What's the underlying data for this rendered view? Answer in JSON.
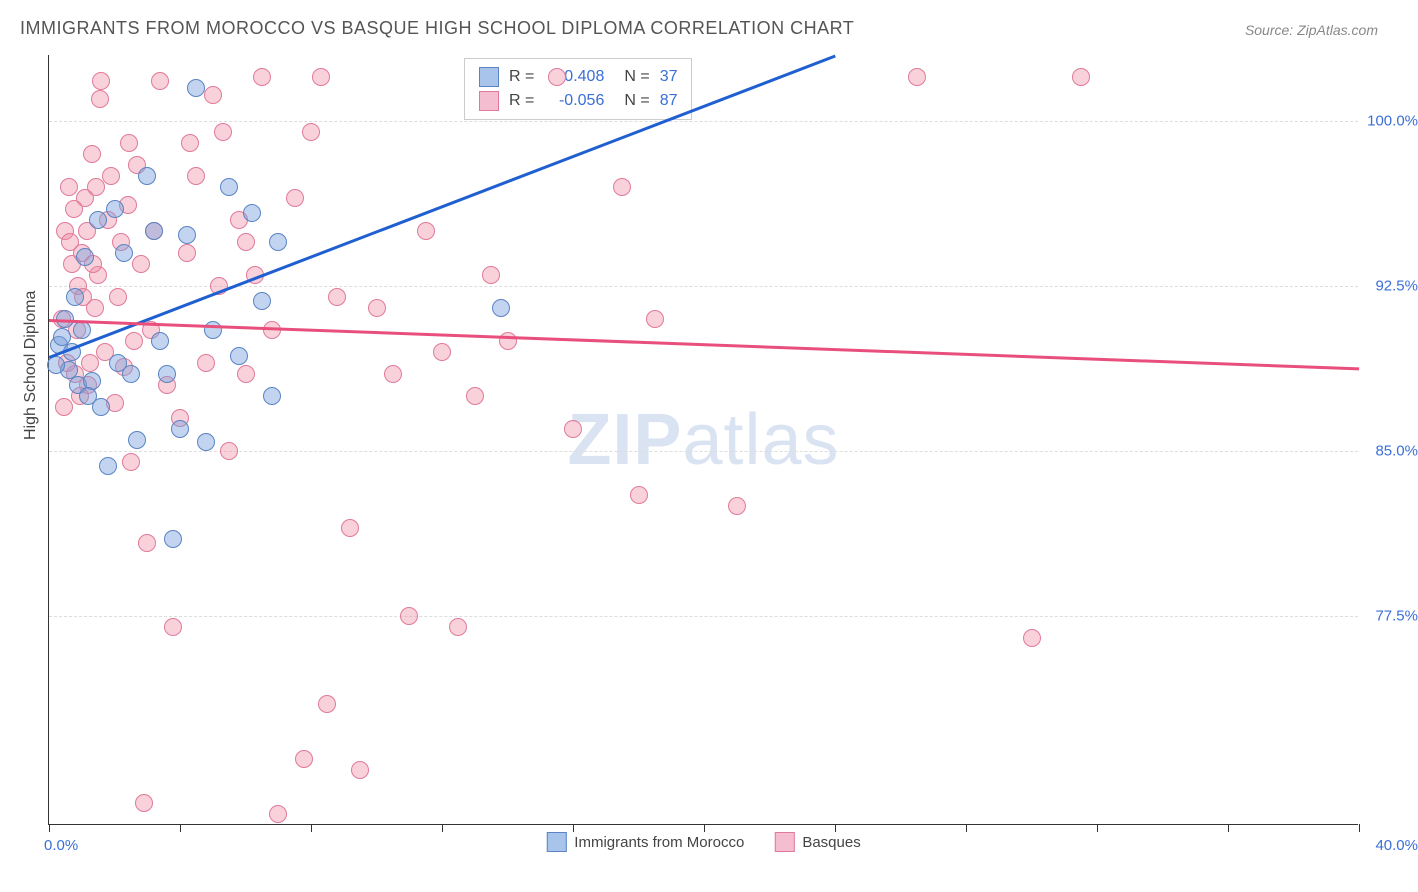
{
  "title": "IMMIGRANTS FROM MOROCCO VS BASQUE HIGH SCHOOL DIPLOMA CORRELATION CHART",
  "source": "Source: ZipAtlas.com",
  "watermark_zip": "ZIP",
  "watermark_atlas": "atlas",
  "y_axis_title": "High School Diploma",
  "chart": {
    "type": "scatter",
    "xlim": [
      0,
      40
    ],
    "ylim": [
      68,
      103
    ],
    "x_label_min": "0.0%",
    "x_label_max": "40.0%",
    "x_tick_positions": [
      0,
      4,
      8,
      12,
      16,
      20,
      24,
      28,
      32,
      36,
      40
    ],
    "y_gridlines": [
      {
        "value": 77.5,
        "label": "77.5%"
      },
      {
        "value": 85.0,
        "label": "85.0%"
      },
      {
        "value": 92.5,
        "label": "92.5%"
      },
      {
        "value": 100.0,
        "label": "100.0%"
      }
    ],
    "background_color": "#ffffff",
    "grid_color": "#dddddd",
    "axis_color": "#333333",
    "label_color": "#3a6fd8",
    "series": [
      {
        "name": "Immigrants from Morocco",
        "color_fill": "rgba(120,160,220,0.45)",
        "color_stroke": "#5a84c4",
        "swatch_fill": "#a9c4ea",
        "swatch_stroke": "#5a84c4",
        "r_value": "0.408",
        "n_value": "37",
        "trend": {
          "x1": 0,
          "y1": 89.3,
          "x2": 24,
          "y2": 103,
          "color": "#1f5fd0"
        },
        "points": [
          [
            0.3,
            89.8
          ],
          [
            0.4,
            90.2
          ],
          [
            0.5,
            91.0
          ],
          [
            0.6,
            88.7
          ],
          [
            0.7,
            89.5
          ],
          [
            0.8,
            92.0
          ],
          [
            0.9,
            88.0
          ],
          [
            1.0,
            90.5
          ],
          [
            1.1,
            93.8
          ],
          [
            1.3,
            88.2
          ],
          [
            1.5,
            95.5
          ],
          [
            1.6,
            87.0
          ],
          [
            1.8,
            84.3
          ],
          [
            2.0,
            96.0
          ],
          [
            2.1,
            89.0
          ],
          [
            2.3,
            94.0
          ],
          [
            2.5,
            88.5
          ],
          [
            2.7,
            85.5
          ],
          [
            3.0,
            97.5
          ],
          [
            3.2,
            95.0
          ],
          [
            3.4,
            90.0
          ],
          [
            3.6,
            88.5
          ],
          [
            3.8,
            81.0
          ],
          [
            4.0,
            86.0
          ],
          [
            4.2,
            94.8
          ],
          [
            4.5,
            101.5
          ],
          [
            4.8,
            85.4
          ],
          [
            5.0,
            90.5
          ],
          [
            5.5,
            97.0
          ],
          [
            5.8,
            89.3
          ],
          [
            6.2,
            95.8
          ],
          [
            6.5,
            91.8
          ],
          [
            6.8,
            87.5
          ],
          [
            7.0,
            94.5
          ],
          [
            13.8,
            91.5
          ],
          [
            0.2,
            88.9
          ],
          [
            1.2,
            87.5
          ]
        ]
      },
      {
        "name": "Basques",
        "color_fill": "rgba(240,140,165,0.4)",
        "color_stroke": "#e07a9a",
        "swatch_fill": "#f5bdd0",
        "swatch_stroke": "#e07a9a",
        "r_value": "-0.056",
        "n_value": "87",
        "trend": {
          "x1": 0,
          "y1": 91.0,
          "x2": 40,
          "y2": 88.8,
          "color": "#e84f7d"
        },
        "points": [
          [
            0.4,
            91.0
          ],
          [
            0.5,
            95.0
          ],
          [
            0.6,
            97.0
          ],
          [
            0.7,
            93.5
          ],
          [
            0.8,
            88.5
          ],
          [
            0.9,
            92.5
          ],
          [
            1.0,
            94.0
          ],
          [
            1.1,
            96.5
          ],
          [
            1.2,
            88.0
          ],
          [
            1.3,
            98.5
          ],
          [
            1.4,
            91.5
          ],
          [
            1.5,
            93.0
          ],
          [
            1.6,
            101.8
          ],
          [
            1.7,
            89.5
          ],
          [
            1.8,
            95.5
          ],
          [
            1.9,
            97.5
          ],
          [
            2.0,
            87.2
          ],
          [
            2.1,
            92.0
          ],
          [
            2.2,
            94.5
          ],
          [
            2.3,
            88.8
          ],
          [
            2.4,
            96.2
          ],
          [
            2.5,
            84.5
          ],
          [
            2.6,
            90.0
          ],
          [
            2.7,
            98.0
          ],
          [
            2.8,
            93.5
          ],
          [
            3.0,
            80.8
          ],
          [
            3.2,
            95.0
          ],
          [
            3.4,
            101.8
          ],
          [
            3.6,
            88.0
          ],
          [
            3.8,
            77.0
          ],
          [
            4.0,
            86.5
          ],
          [
            4.2,
            94.0
          ],
          [
            4.5,
            97.5
          ],
          [
            4.8,
            89.0
          ],
          [
            5.0,
            101.2
          ],
          [
            5.2,
            92.5
          ],
          [
            5.5,
            85.0
          ],
          [
            5.8,
            95.5
          ],
          [
            6.0,
            88.5
          ],
          [
            6.3,
            93.0
          ],
          [
            6.5,
            102.0
          ],
          [
            6.8,
            90.5
          ],
          [
            7.0,
            68.5
          ],
          [
            7.5,
            96.5
          ],
          [
            7.8,
            71.0
          ],
          [
            8.0,
            99.5
          ],
          [
            8.3,
            102.0
          ],
          [
            8.5,
            73.5
          ],
          [
            8.8,
            92.0
          ],
          [
            9.2,
            81.5
          ],
          [
            9.5,
            70.5
          ],
          [
            10.0,
            91.5
          ],
          [
            10.5,
            88.5
          ],
          [
            11.0,
            77.5
          ],
          [
            11.5,
            95.0
          ],
          [
            12.0,
            89.5
          ],
          [
            12.5,
            77.0
          ],
          [
            13.0,
            87.5
          ],
          [
            13.5,
            93.0
          ],
          [
            14.0,
            90.0
          ],
          [
            15.5,
            102.0
          ],
          [
            16.0,
            86.0
          ],
          [
            17.5,
            97.0
          ],
          [
            18.5,
            91.0
          ],
          [
            21.0,
            82.5
          ],
          [
            26.5,
            102.0
          ],
          [
            30.0,
            76.5
          ],
          [
            31.5,
            102.0
          ],
          [
            18.0,
            83.0
          ],
          [
            2.9,
            69.0
          ],
          [
            1.55,
            101.0
          ],
          [
            0.45,
            87.0
          ],
          [
            0.55,
            89.0
          ],
          [
            0.65,
            94.5
          ],
          [
            0.75,
            96.0
          ],
          [
            0.85,
            90.5
          ],
          [
            0.95,
            87.5
          ],
          [
            1.05,
            92.0
          ],
          [
            1.15,
            95.0
          ],
          [
            1.25,
            89.0
          ],
          [
            1.35,
            93.5
          ],
          [
            1.45,
            97.0
          ],
          [
            3.1,
            90.5
          ],
          [
            6.0,
            94.5
          ],
          [
            4.3,
            99.0
          ],
          [
            2.45,
            99.0
          ],
          [
            5.3,
            99.5
          ]
        ]
      }
    ],
    "legend_top": {
      "r_label": "R =",
      "n_label": "N ="
    },
    "legend_bottom_labels": [
      "Immigrants from Morocco",
      "Basques"
    ]
  }
}
